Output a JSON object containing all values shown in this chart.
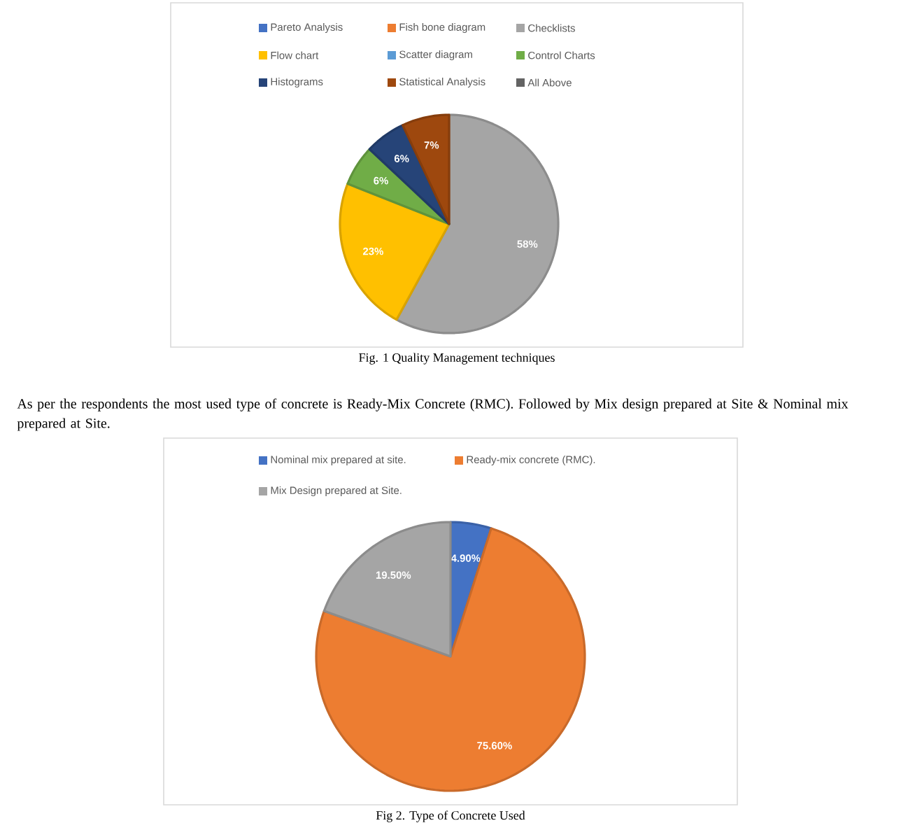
{
  "chart_data": [
    {
      "type": "pie",
      "categories": [
        "Pareto Analysis",
        "Fish bone diagram",
        "Checklists",
        "Flow chart",
        "Scatter diagram",
        "Control Charts",
        "Histograms",
        "Statistical Analysis",
        "All Above"
      ],
      "values": [
        0,
        0,
        58,
        23,
        0,
        6,
        6,
        7,
        0
      ],
      "colors": [
        "#4472c4",
        "#ed7d31",
        "#a5a5a5",
        "#ffc000",
        "#5b9bd5",
        "#70ad47",
        "#264478",
        "#9e480e",
        "#636363"
      ],
      "value_labels": [
        null,
        null,
        "58%",
        "23%",
        null,
        "6%",
        "6%",
        "7%",
        null
      ],
      "legend": "top",
      "annotations": [
        "Fig. 1 Quality Management techniques"
      ]
    },
    {
      "type": "pie",
      "categories": [
        "Nominal mix prepared at site.",
        "Ready-mix concrete (RMC).",
        "Mix Design prepared at Site."
      ],
      "values": [
        4.9,
        75.6,
        19.5
      ],
      "colors": [
        "#4472c4",
        "#ed7d31",
        "#a5a5a5"
      ],
      "value_labels": [
        "4.90%",
        "75.60%",
        "19.50%"
      ],
      "legend": "top",
      "annotations": [
        "As per the respondents the most used type of concrete is Ready-Mix Concrete (RMC). Followed by Mix design prepared at Site & Nominal mix prepared at Site.",
        "Fig 2. Type of Concrete Used"
      ]
    }
  ]
}
